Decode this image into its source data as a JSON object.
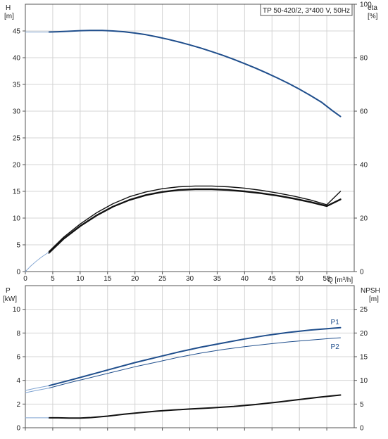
{
  "colors": {
    "blue": "#1f4e8c",
    "lightblue": "#7fa3d1",
    "black": "#111111",
    "grid": "#d4d4d4",
    "axis": "#555555"
  },
  "chart_data": [
    {
      "type": "line",
      "title": "TP 50-420/2, 3*400 V, 50Hz",
      "xlabel": "Q [m³/h]",
      "ylabel_left_line1": "H",
      "ylabel_left_line2": "[m]",
      "ylabel_right_line1": "eta",
      "ylabel_right_line2": "[%]",
      "xlim": [
        0,
        60
      ],
      "ylim_left": [
        0,
        50
      ],
      "ylim_right": [
        0,
        100
      ],
      "x_ticks": [
        "0",
        "5",
        "10",
        "15",
        "20",
        "25",
        "30",
        "35",
        "40",
        "45",
        "50",
        "55"
      ],
      "y_left_ticks": [
        "0",
        "5",
        "10",
        "15",
        "20",
        "25",
        "30",
        "35",
        "40",
        "45"
      ],
      "y_right_ticks": [
        "0",
        "20",
        "40",
        "60",
        "80",
        "100"
      ],
      "grid": true,
      "series": [
        {
          "axis": "left",
          "color": "blue",
          "width": 2,
          "x": [
            4.3,
            6,
            8,
            10,
            12,
            14,
            16,
            18,
            20,
            22,
            24,
            26,
            28,
            30,
            32,
            34,
            36,
            38,
            40,
            42,
            44,
            46,
            48,
            50,
            52,
            54,
            56,
            57.5
          ],
          "y": [
            44.8,
            44.85,
            44.95,
            45.05,
            45.1,
            45.1,
            45.0,
            44.85,
            44.6,
            44.3,
            43.9,
            43.45,
            42.95,
            42.4,
            41.8,
            41.15,
            40.45,
            39.7,
            38.9,
            38.05,
            37.15,
            36.2,
            35.2,
            34.1,
            32.95,
            31.7,
            30.1,
            29.0
          ]
        },
        {
          "axis": "left",
          "color": "lightblue",
          "width": 1,
          "x": [
            0,
            4.3
          ],
          "y": [
            44.8,
            44.8
          ]
        },
        {
          "axis": "right",
          "color": "black",
          "width": 1.4,
          "x": [
            4.3,
            7,
            10,
            13,
            16,
            19,
            22,
            25,
            28,
            31,
            34,
            37,
            40,
            43,
            46,
            49,
            52,
            55,
            57.5
          ],
          "y": [
            7.5,
            12.9,
            17.8,
            22.0,
            25.4,
            28.0,
            29.8,
            31.0,
            31.7,
            32.0,
            32.0,
            31.7,
            31.2,
            30.4,
            29.4,
            28.2,
            26.8,
            25.0,
            30.0
          ]
        },
        {
          "axis": "right",
          "color": "black",
          "width": 2.4,
          "x": [
            4.3,
            7,
            10,
            13,
            16,
            19,
            22,
            25,
            28,
            31,
            34,
            37,
            40,
            43,
            46,
            49,
            52,
            55,
            57.5
          ],
          "y": [
            7.0,
            12.3,
            17.0,
            21.0,
            24.3,
            26.8,
            28.6,
            29.8,
            30.5,
            30.8,
            30.8,
            30.5,
            30.0,
            29.3,
            28.4,
            27.3,
            26.0,
            24.5,
            27.0
          ]
        },
        {
          "axis": "right",
          "color": "lightblue",
          "width": 0.9,
          "x": [
            0,
            1,
            2,
            3,
            4.3
          ],
          "y": [
            0,
            2.1,
            3.9,
            5.5,
            7.3
          ]
        }
      ]
    },
    {
      "type": "line",
      "xlabel": "",
      "ylabel_left_line1": "P",
      "ylabel_left_line2": "[kW]",
      "ylabel_right_line1": "NPSH",
      "ylabel_right_line2": "[m]",
      "xlim": [
        0,
        60
      ],
      "ylim_left": [
        0,
        12
      ],
      "ylim_right": [
        0,
        30
      ],
      "y_left_ticks": [
        "0",
        "2",
        "4",
        "6",
        "8",
        "10"
      ],
      "y_right_ticks": [
        "0",
        "5",
        "10",
        "15",
        "20",
        "25"
      ],
      "grid": true,
      "series": [
        {
          "name": "P1",
          "axis": "left",
          "color": "blue",
          "width": 2,
          "x": [
            4.3,
            8,
            12,
            16,
            20,
            24,
            28,
            32,
            36,
            40,
            44,
            48,
            52,
            56,
            57.5
          ],
          "y": [
            3.55,
            4.0,
            4.5,
            5.0,
            5.5,
            5.95,
            6.4,
            6.8,
            7.15,
            7.5,
            7.8,
            8.05,
            8.25,
            8.4,
            8.45
          ]
        },
        {
          "name": "P2",
          "axis": "left",
          "color": "blue",
          "width": 1,
          "x": [
            4.3,
            8,
            12,
            16,
            20,
            24,
            28,
            32,
            36,
            40,
            44,
            48,
            52,
            56,
            57.5
          ],
          "y": [
            3.35,
            3.8,
            4.25,
            4.7,
            5.15,
            5.55,
            5.95,
            6.3,
            6.6,
            6.85,
            7.05,
            7.25,
            7.4,
            7.55,
            7.6
          ]
        },
        {
          "axis": "left",
          "color": "lightblue",
          "width": 1,
          "x": [
            0,
            2,
            4.3
          ],
          "y": [
            3.15,
            3.35,
            3.55
          ]
        },
        {
          "axis": "left",
          "color": "lightblue",
          "width": 1,
          "x": [
            0,
            2,
            4.3
          ],
          "y": [
            2.95,
            3.15,
            3.35
          ]
        },
        {
          "axis": "right",
          "color": "black",
          "width": 2,
          "x": [
            4.3,
            6,
            8,
            10,
            12,
            15,
            18,
            21,
            24,
            27,
            30,
            34,
            38,
            42,
            46,
            50,
            54,
            57.5
          ],
          "y": [
            2.1,
            2.1,
            2.05,
            2.05,
            2.15,
            2.45,
            2.85,
            3.2,
            3.5,
            3.75,
            3.95,
            4.2,
            4.5,
            4.9,
            5.4,
            5.95,
            6.5,
            6.9
          ]
        },
        {
          "axis": "right",
          "color": "lightblue",
          "width": 1,
          "x": [
            0,
            4.3
          ],
          "y": [
            2.1,
            2.1
          ]
        }
      ]
    }
  ]
}
